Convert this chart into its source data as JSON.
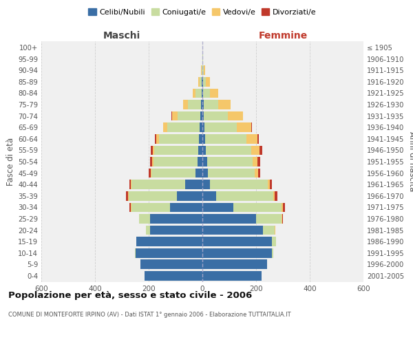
{
  "age_groups": [
    "100+",
    "95-99",
    "90-94",
    "85-89",
    "80-84",
    "75-79",
    "70-74",
    "65-69",
    "60-64",
    "55-59",
    "50-54",
    "45-49",
    "40-44",
    "35-39",
    "30-34",
    "25-29",
    "20-24",
    "15-19",
    "10-14",
    "5-9",
    "0-4"
  ],
  "birth_years": [
    "≤ 1905",
    "1906-1910",
    "1911-1915",
    "1916-1920",
    "1921-1925",
    "1926-1930",
    "1931-1935",
    "1936-1940",
    "1941-1945",
    "1946-1950",
    "1951-1955",
    "1956-1960",
    "1961-1965",
    "1966-1970",
    "1971-1975",
    "1976-1980",
    "1981-1985",
    "1986-1990",
    "1991-1995",
    "1996-2000",
    "2001-2005"
  ],
  "maschi": {
    "celibi": [
      0,
      0,
      0,
      2,
      3,
      5,
      8,
      10,
      12,
      15,
      18,
      25,
      65,
      95,
      120,
      195,
      195,
      245,
      250,
      230,
      215
    ],
    "coniugati": [
      0,
      1,
      3,
      8,
      22,
      50,
      85,
      120,
      150,
      165,
      165,
      165,
      200,
      180,
      145,
      40,
      15,
      2,
      2,
      1,
      1
    ],
    "vedovi": [
      0,
      0,
      2,
      5,
      10,
      18,
      20,
      15,
      10,
      5,
      5,
      3,
      2,
      2,
      2,
      0,
      0,
      0,
      0,
      0,
      0
    ],
    "divorziati": [
      0,
      0,
      0,
      0,
      0,
      0,
      2,
      2,
      5,
      8,
      8,
      8,
      5,
      8,
      5,
      2,
      0,
      0,
      0,
      0,
      0
    ]
  },
  "femmine": {
    "nubili": [
      0,
      0,
      1,
      2,
      3,
      5,
      5,
      8,
      10,
      12,
      18,
      20,
      28,
      50,
      115,
      200,
      225,
      260,
      260,
      240,
      220
    ],
    "coniugate": [
      0,
      2,
      5,
      12,
      25,
      55,
      90,
      120,
      155,
      170,
      170,
      175,
      215,
      215,
      180,
      95,
      45,
      15,
      5,
      2,
      1
    ],
    "vedove": [
      0,
      1,
      5,
      15,
      30,
      45,
      55,
      55,
      40,
      30,
      18,
      12,
      8,
      5,
      4,
      2,
      1,
      0,
      0,
      0,
      0
    ],
    "divorziate": [
      0,
      0,
      0,
      0,
      0,
      0,
      2,
      2,
      5,
      10,
      10,
      8,
      8,
      10,
      8,
      2,
      1,
      0,
      0,
      0,
      0
    ]
  },
  "color_celibi": "#3a6ea5",
  "color_coniugati": "#c8dca0",
  "color_vedovi": "#f5c76a",
  "color_divorziati": "#c0392b",
  "title": "Popolazione per età, sesso e stato civile - 2006",
  "subtitle": "COMUNE DI MONTEFORTE IRPINO (AV) - Dati ISTAT 1° gennaio 2006 - Elaborazione TUTTAITALIA.IT",
  "xlabel_left": "Maschi",
  "xlabel_right": "Femmine",
  "ylabel_left": "Fasce di età",
  "ylabel_right": "Anni di nascita",
  "xlim": 600,
  "background_color": "#ffffff",
  "grid_color": "#cccccc",
  "legend_labels": [
    "Celibi/Nubili",
    "Coniugati/e",
    "Vedovi/e",
    "Divorziati/e"
  ]
}
